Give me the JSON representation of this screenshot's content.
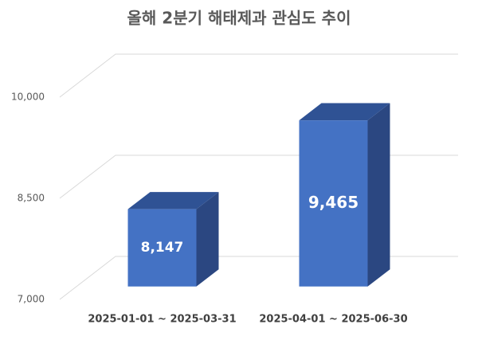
{
  "chart_data": {
    "type": "bar3d",
    "title": "올해 2분기 해태제과 관심도 추이",
    "categories": [
      "2025-01-01 ~ 2025-03-31",
      "2025-04-01 ~ 2025-06-30"
    ],
    "values": [
      8147,
      9465
    ],
    "value_labels": [
      "8,147",
      "9,465"
    ],
    "color": "#4472c4",
    "ylim": [
      7000,
      10000
    ],
    "yticks": [
      {
        "value": 7000,
        "label": "7,000"
      },
      {
        "value": 8500,
        "label": "8,500"
      },
      {
        "value": 10000,
        "label": "10,000"
      }
    ],
    "grid": true
  }
}
